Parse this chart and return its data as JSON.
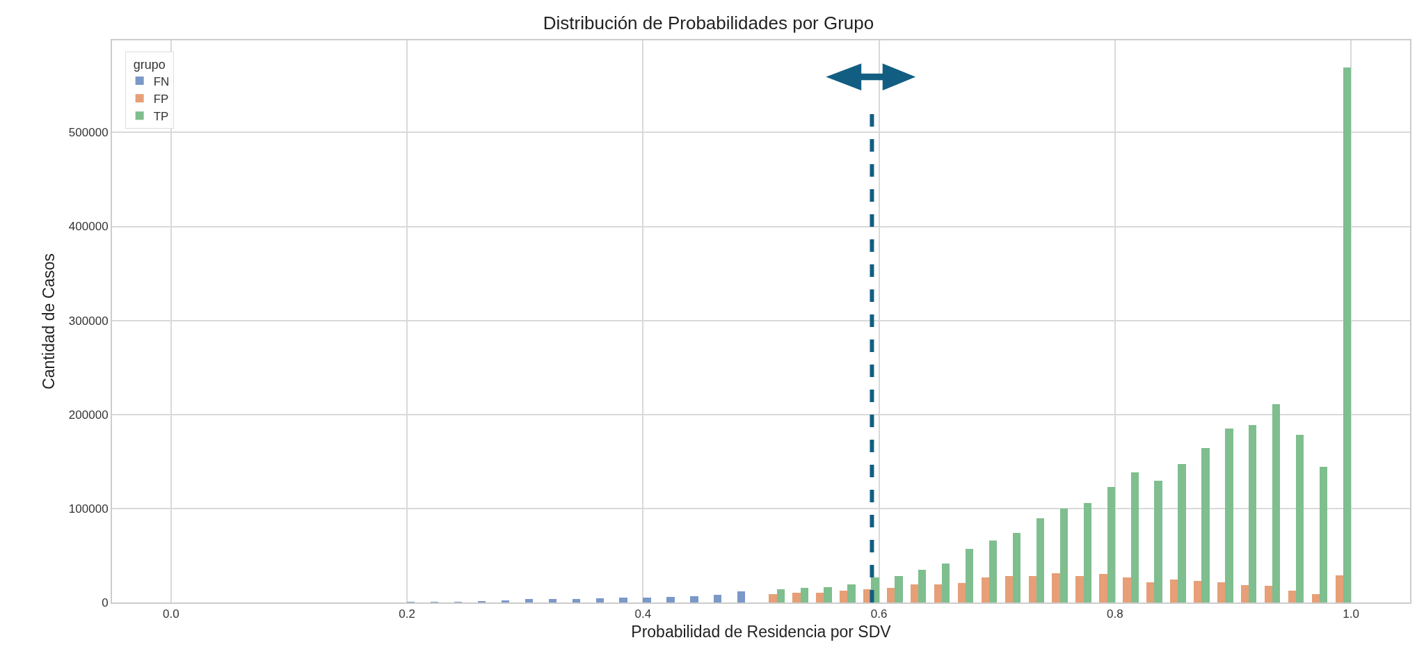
{
  "chart_data": {
    "type": "histogram",
    "title": "Distribución de Probabilidades por Grupo",
    "xlabel": "Probabilidad de Residencia por SDV",
    "ylabel": "Cantidad de Casos",
    "legend_title": "grupo",
    "bins": [
      0.0,
      0.02,
      0.04,
      0.06,
      0.08,
      0.1,
      0.12,
      0.14,
      0.16,
      0.18,
      0.2,
      0.22,
      0.24,
      0.26,
      0.28,
      0.3,
      0.32,
      0.34,
      0.36,
      0.38,
      0.4,
      0.42,
      0.44,
      0.46,
      0.48,
      0.5,
      0.52,
      0.54,
      0.56,
      0.58,
      0.6,
      0.62,
      0.64,
      0.66,
      0.68,
      0.7,
      0.72,
      0.74,
      0.76,
      0.78,
      0.8,
      0.82,
      0.84,
      0.86,
      0.88,
      0.9,
      0.92,
      0.94,
      0.96,
      0.98,
      1.0
    ],
    "series": [
      {
        "name": "FN",
        "color": "#7a98c8",
        "values": [
          null,
          null,
          null,
          null,
          null,
          null,
          null,
          null,
          null,
          null,
          500,
          500,
          500,
          1000,
          2500,
          3500,
          4000,
          4000,
          4500,
          5500,
          5500,
          6000,
          7000,
          8000,
          12000,
          null,
          null,
          null,
          null,
          null,
          null,
          null,
          null,
          null,
          null,
          null,
          null,
          null,
          null,
          null,
          null,
          null,
          null,
          null,
          null,
          null,
          null,
          null,
          null,
          null
        ]
      },
      {
        "name": "FP",
        "color": "#e69f77",
        "values": [
          null,
          null,
          null,
          null,
          null,
          null,
          null,
          null,
          null,
          null,
          null,
          null,
          null,
          null,
          null,
          null,
          null,
          null,
          null,
          null,
          null,
          null,
          null,
          null,
          null,
          8600,
          10000,
          10000,
          12900,
          14300,
          15400,
          19400,
          19400,
          20600,
          26900,
          28300,
          28300,
          30900,
          28300,
          30400,
          26500,
          21400,
          24100,
          22600,
          21400,
          18700,
          17500,
          12500,
          8600,
          29200
        ]
      },
      {
        "name": "TP",
        "color": "#7fbe8e",
        "values": [
          null,
          null,
          null,
          null,
          null,
          null,
          null,
          null,
          null,
          null,
          null,
          null,
          null,
          null,
          null,
          null,
          null,
          null,
          null,
          null,
          null,
          null,
          null,
          null,
          null,
          14000,
          15400,
          16600,
          19400,
          26900,
          28300,
          34900,
          41100,
          56900,
          65700,
          73700,
          89400,
          100000,
          106000,
          123000,
          138500,
          129200,
          147100,
          164200,
          184800,
          188700,
          210900,
          178200,
          144400,
          569300
        ]
      }
    ],
    "xlim": [
      -0.05,
      1.05
    ],
    "xticks": [
      {
        "value": 0,
        "label": "0.0"
      },
      0.2,
      0.4,
      0.6,
      0.8,
      {
        "value": 1,
        "label": "1.0"
      }
    ],
    "ylim": [
      0,
      598000
    ],
    "yticks": [
      0,
      100000,
      200000,
      300000,
      400000,
      500000
    ],
    "ref_lines": [
      {
        "axis": "x",
        "value": 0.594,
        "color": "#125e82",
        "line_style": "dashed"
      }
    ],
    "grid": true,
    "legend": "top left"
  }
}
